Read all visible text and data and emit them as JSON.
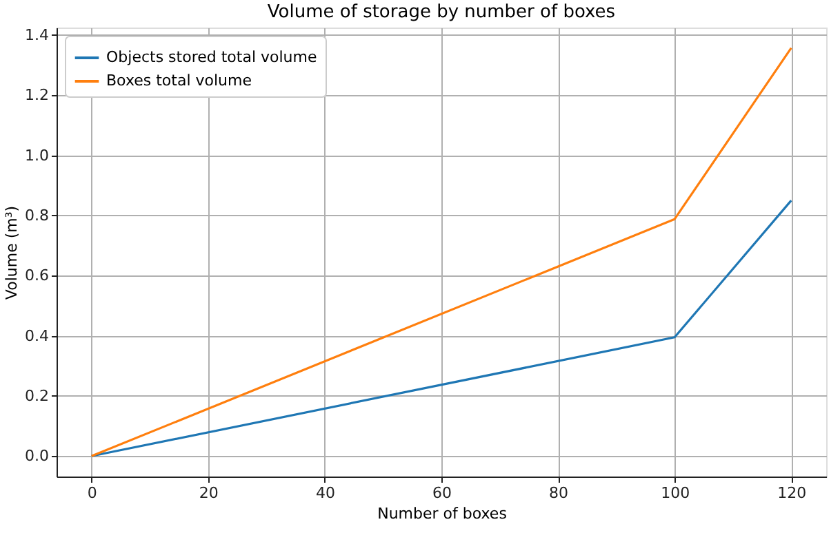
{
  "chart_data": {
    "type": "line",
    "title": "Volume of storage by number of boxes",
    "xlabel": "Number of boxes",
    "ylabel": "Volume (m³)",
    "x": [
      0,
      100,
      120
    ],
    "series": [
      {
        "name": "Objects stored total volume",
        "color": "#1f77b4",
        "values": [
          0,
          0.395,
          0.85
        ]
      },
      {
        "name": "Boxes total volume",
        "color": "#ff7f0e",
        "values": [
          0,
          0.788,
          1.357
        ]
      }
    ],
    "xlim": [
      -6,
      126
    ],
    "xticks": [
      0,
      20,
      40,
      60,
      80,
      100,
      120
    ],
    "ylim": [
      -0.068,
      1.425
    ],
    "yticks": [
      {
        "value": 0,
        "label": "0.0"
      },
      {
        "value": 0.2,
        "label": "0.2"
      },
      {
        "value": 0.4,
        "label": "0.4"
      },
      {
        "value": 0.6,
        "label": "0.6"
      },
      {
        "value": 0.8,
        "label": "0.8"
      },
      {
        "value": 1.0,
        "label": "1.0"
      },
      {
        "value": 1.2,
        "label": "1.2"
      },
      {
        "value": 1.4,
        "label": "1.4"
      }
    ],
    "grid": true,
    "legend": "top left",
    "marker": "none",
    "line_style": "solid"
  }
}
